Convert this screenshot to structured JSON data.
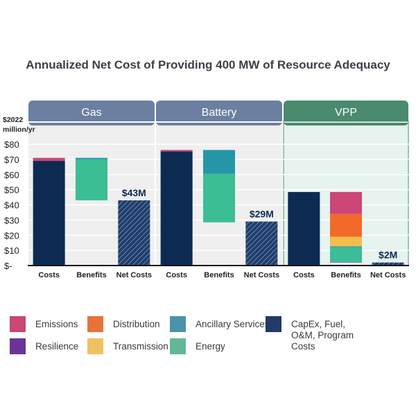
{
  "chart_data": {
    "type": "bar",
    "subtype": "stacked-waterfall",
    "title": "Annualized Net Cost of Providing 400 MW of Resource Adequacy",
    "ylabel": "$2022 million/yr",
    "ylim": [
      0,
      80
    ],
    "yticks": [
      {
        "value": 80,
        "label": "$80"
      },
      {
        "value": 70,
        "label": "$70"
      },
      {
        "value": 60,
        "label": "$60"
      },
      {
        "value": 50,
        "label": "$50"
      },
      {
        "value": 40,
        "label": "$40"
      },
      {
        "value": 30,
        "label": "$30"
      },
      {
        "value": 20,
        "label": "$20"
      },
      {
        "value": 10,
        "label": "$10"
      },
      {
        "value": 0,
        "label": "$-"
      }
    ],
    "grid": true,
    "legend_position": "bottom",
    "groups": [
      {
        "name": "Gas",
        "header_color": "#6b80a0",
        "panel_color": "#efefef",
        "bars": [
          {
            "label": "Costs",
            "kind": "stack",
            "segments": [
              {
                "series": "CapEx, Fuel, O&M, Program Costs",
                "from": 0,
                "to": 69
              },
              {
                "series": "Emissions",
                "from": 69,
                "to": 71
              }
            ]
          },
          {
            "label": "Benefits",
            "kind": "stack",
            "segments": [
              {
                "series": "Energy",
                "from": 43,
                "to": 70
              },
              {
                "series": "Ancillary Services",
                "from": 70,
                "to": 71
              }
            ]
          },
          {
            "label": "Net Costs",
            "kind": "net",
            "value": 43,
            "data_label": "$43M"
          }
        ]
      },
      {
        "name": "Battery",
        "header_color": "#6b80a0",
        "panel_color": "#efefef",
        "bars": [
          {
            "label": "Costs",
            "kind": "stack",
            "segments": [
              {
                "series": "CapEx, Fuel, O&M, Program Costs",
                "from": 0,
                "to": 75.3
              },
              {
                "series": "Emissions",
                "from": 75.3,
                "to": 76.2
              }
            ]
          },
          {
            "label": "Benefits",
            "kind": "stack",
            "segments": [
              {
                "series": "Energy",
                "from": 28.5,
                "to": 60.5
              },
              {
                "series": "Ancillary Services",
                "from": 60.5,
                "to": 76.2
              }
            ]
          },
          {
            "label": "Net Costs",
            "kind": "net",
            "value": 29,
            "data_label": "$29M"
          }
        ]
      },
      {
        "name": "VPP",
        "header_color": "#4a8a6e",
        "panel_color": "#e6f3ee",
        "bars": [
          {
            "label": "Costs",
            "kind": "stack",
            "segments": [
              {
                "series": "CapEx, Fuel, O&M, Program Costs",
                "from": 0,
                "to": 48.5
              }
            ]
          },
          {
            "label": "Benefits",
            "kind": "stack",
            "segments": [
              {
                "series": "Resilience",
                "from": 2,
                "to": 2.4
              },
              {
                "series": "Energy",
                "from": 2.4,
                "to": 12
              },
              {
                "series": "Ancillary Services",
                "from": 12,
                "to": 12.7
              },
              {
                "series": "Transmission",
                "from": 12.7,
                "to": 19
              },
              {
                "series": "Distribution",
                "from": 19,
                "to": 34
              },
              {
                "series": "Emissions",
                "from": 34,
                "to": 48.5
              }
            ]
          },
          {
            "label": "Net Costs",
            "kind": "net",
            "value": 2,
            "data_label": "$2M"
          }
        ]
      }
    ],
    "series": [
      {
        "name": "Emissions",
        "color": "#cc4677"
      },
      {
        "name": "Distribution",
        "color": "#f26a2a"
      },
      {
        "name": "Ancillary Services",
        "color": "#2596a8"
      },
      {
        "name": "CapEx, Fuel, O&M, Program Costs",
        "color": "#0c2a52"
      },
      {
        "name": "Resilience",
        "color": "#6d2f9c"
      },
      {
        "name": "Transmission",
        "color": "#f4bd4c"
      },
      {
        "name": "Energy",
        "color": "#3bbd95"
      }
    ]
  },
  "legend": [
    {
      "label": "Emissions",
      "color": "#c8486f"
    },
    {
      "label": "Resilience",
      "color": "#6a3499"
    },
    {
      "label": "Distribution",
      "color": "#e8733a"
    },
    {
      "label": "Transmission",
      "color": "#f0c162"
    },
    {
      "label": "Ancillary Services",
      "color": "#4a93a8"
    },
    {
      "label": "Energy",
      "color": "#62b896"
    },
    {
      "label": "CapEx, Fuel, O&M, Program Costs",
      "color": "#223a68"
    }
  ]
}
